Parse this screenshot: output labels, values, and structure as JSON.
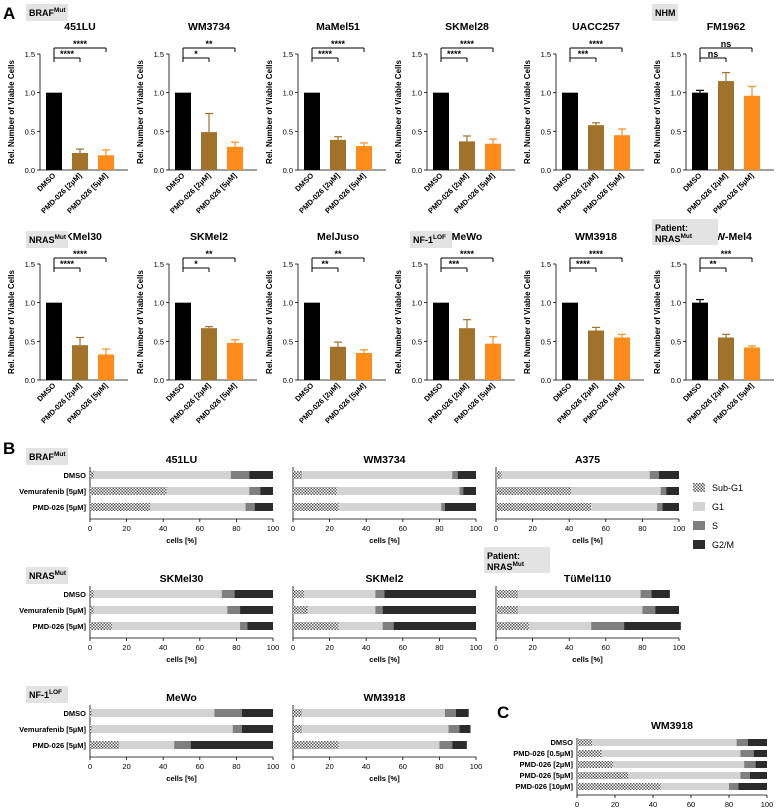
{
  "figure": {
    "panel_labels": [
      "A",
      "B",
      "C"
    ],
    "colors": {
      "dmso": "#000000",
      "pmd2": "#a0722a",
      "pmd5": "#ff8c1a",
      "subg1": "#bdbdbd",
      "g1": "#d3d3d3",
      "s": "#7f7f7f",
      "g2m": "#2b2b2b",
      "tag_bg": "#e3e3e3"
    },
    "panel_a": {
      "ylabel": "Rel. Number of Viable Cells",
      "categories": [
        "DMSO",
        "PMD-026 [2µM]",
        "PMD-026 [5µM]"
      ],
      "groups": [
        {
          "tag": "BRAF",
          "tag_sup": "Mut",
          "row": 0,
          "start": 0
        },
        {
          "tag": "NHM",
          "tag_sup": "",
          "row": 0,
          "start": 5
        },
        {
          "tag": "NRAS",
          "tag_sup": "Mut",
          "row": 1,
          "start": 0
        },
        {
          "tag": "NF-1",
          "tag_sup": "LOF",
          "row": 1,
          "start": 3
        },
        {
          "tag": "Patient:",
          "tag2": "NRAS",
          "tag_sup": "Mut",
          "row": 1,
          "start": 5
        }
      ]
    },
    "panel_b": {
      "xlabel": "cells [%]",
      "legend": [
        "Sub-G1",
        "G1",
        "S",
        "G2/M"
      ]
    },
    "panel_c": {
      "xlabel": "cells [%]"
    }
  },
  "chart_data": [
    {
      "type": "bar",
      "panel": "A",
      "ylabel": "Rel. Number of Viable Cells",
      "categories": [
        "DMSO",
        "PMD-026 [2µM]",
        "PMD-026 [5µM]"
      ],
      "ylim": [
        0,
        1.5
      ],
      "yticks": [
        "0.0",
        "0.5",
        "1.0",
        "1.5"
      ],
      "charts": [
        {
          "title": "451LU",
          "values": [
            1.0,
            0.22,
            0.19
          ],
          "errors": [
            0,
            0.05,
            0.07
          ],
          "sig": [
            "****",
            "****"
          ]
        },
        {
          "title": "WM3734",
          "values": [
            1.0,
            0.49,
            0.3
          ],
          "errors": [
            0,
            0.24,
            0.06
          ],
          "sig": [
            "*",
            "**"
          ]
        },
        {
          "title": "MaMel51",
          "values": [
            1.0,
            0.39,
            0.31
          ],
          "errors": [
            0,
            0.04,
            0.04
          ],
          "sig": [
            "****",
            "****"
          ]
        },
        {
          "title": "SKMel28",
          "values": [
            1.0,
            0.37,
            0.34
          ],
          "errors": [
            0,
            0.07,
            0.06
          ],
          "sig": [
            "****",
            "****"
          ]
        },
        {
          "title": "UACC257",
          "values": [
            1.0,
            0.58,
            0.45
          ],
          "errors": [
            0,
            0.03,
            0.08
          ],
          "sig": [
            "***",
            "****"
          ]
        },
        {
          "title": "FM1962",
          "values": [
            1.0,
            1.15,
            0.96
          ],
          "errors": [
            0.03,
            0.11,
            0.12
          ],
          "sig": [
            "ns",
            "ns"
          ]
        },
        {
          "title": "SKMel30",
          "values": [
            1.0,
            0.45,
            0.33
          ],
          "errors": [
            0,
            0.1,
            0.07
          ],
          "sig": [
            "****",
            "****"
          ]
        },
        {
          "title": "SKMel2",
          "values": [
            1.0,
            0.67,
            0.48
          ],
          "errors": [
            0,
            0.02,
            0.04
          ],
          "sig": [
            "*",
            "**"
          ]
        },
        {
          "title": "MelJuso",
          "values": [
            1.0,
            0.43,
            0.35
          ],
          "errors": [
            0,
            0.06,
            0.04
          ],
          "sig": [
            "**",
            "**"
          ]
        },
        {
          "title": "MeWo",
          "values": [
            1.0,
            0.67,
            0.47
          ],
          "errors": [
            0,
            0.11,
            0.09
          ],
          "sig": [
            "***",
            "****"
          ]
        },
        {
          "title": "WM3918",
          "values": [
            1.0,
            0.64,
            0.55
          ],
          "errors": [
            0,
            0.04,
            0.04
          ],
          "sig": [
            "****",
            "****"
          ]
        },
        {
          "title": "UKW-Mel4",
          "values": [
            1.0,
            0.55,
            0.42
          ],
          "errors": [
            0.04,
            0.04,
            0.02
          ],
          "sig": [
            "**",
            "***"
          ]
        }
      ]
    },
    {
      "type": "bar",
      "orientation": "horizontal",
      "stacked": true,
      "panel": "B",
      "xlabel": "cells [%]",
      "xlim": [
        0,
        100
      ],
      "xticks": [
        "0",
        "20",
        "40",
        "60",
        "80",
        "100"
      ],
      "series_names": [
        "Sub-G1",
        "G1",
        "S",
        "G2/M"
      ],
      "groups": [
        {
          "tag": "BRAF",
          "tag_sup": "Mut",
          "tag2": "",
          "categories": [
            "DMSO",
            "Vemurafenib [5µM]",
            "PMD-026 [5µM]"
          ],
          "charts": [
            {
              "title": "451LU",
              "rows": [
                [
                  2,
                  75,
                  10,
                  13
                ],
                [
                  42,
                  45,
                  6,
                  7
                ],
                [
                  33,
                  52,
                  5,
                  10
                ]
              ]
            },
            {
              "title": "WM3734",
              "rows": [
                [
                  5,
                  82,
                  3,
                  10
                ],
                [
                  24,
                  67,
                  2,
                  7
                ],
                [
                  25,
                  56,
                  2,
                  17
                ]
              ]
            },
            {
              "title": "A375",
              "rows": [
                [
                  3,
                  81,
                  5,
                  11
                ],
                [
                  41,
                  49,
                  3,
                  7
                ],
                [
                  52,
                  36,
                  3,
                  9
                ]
              ]
            }
          ]
        },
        {
          "tag": "NRAS",
          "tag_sup": "Mut",
          "tag2": "",
          "categories": [
            "DMSO",
            "Vemurafenib [5µM]",
            "PMD-026 [5µM]"
          ],
          "charts": [
            {
              "title": "SKMel30",
              "rows": [
                [
                  2,
                  70,
                  7,
                  21
                ],
                [
                  2,
                  73,
                  7,
                  18
                ],
                [
                  12,
                  70,
                  4,
                  14
                ]
              ]
            },
            {
              "title": "SKMel2",
              "rows": [
                [
                  6,
                  39,
                  5,
                  50
                ],
                [
                  8,
                  37,
                  4,
                  51
                ],
                [
                  25,
                  24,
                  6,
                  45
                ]
              ]
            },
            {
              "tag": "Patient:",
              "tag2": "NRAS",
              "tag_sup": "Mut",
              "title": "TüMel110",
              "rows": [
                [
                  12,
                  67,
                  6,
                  10
                ],
                [
                  12,
                  68,
                  7,
                  13
                ],
                [
                  18,
                  34,
                  18,
                  31
                ]
              ]
            }
          ]
        },
        {
          "tag": "NF-1",
          "tag_sup": "LOF",
          "tag2": "",
          "categories": [
            "DMSO",
            "Vemurafenib [5µM]",
            "PMD-026 [5µM]"
          ],
          "charts": [
            {
              "title": "MeWo",
              "rows": [
                [
                  1,
                  67,
                  15,
                  17
                ],
                [
                  1,
                  77,
                  5,
                  17
                ],
                [
                  16,
                  30,
                  9,
                  45
                ]
              ]
            },
            {
              "title": "WM3918",
              "rows": [
                [
                  5,
                  78,
                  6,
                  7
                ],
                [
                  5,
                  80,
                  6,
                  6
                ],
                [
                  25,
                  55,
                  7,
                  8
                ]
              ]
            }
          ]
        }
      ]
    },
    {
      "type": "bar",
      "orientation": "horizontal",
      "stacked": true,
      "panel": "C",
      "title": "WM3918",
      "xlabel": "cells [%]",
      "xlim": [
        0,
        100
      ],
      "xticks": [
        "0",
        "20",
        "40",
        "60",
        "80",
        "100"
      ],
      "categories": [
        "DMSO",
        "PMD-026 [0.5µM]",
        "PMD-026 [2µM]",
        "PMD-026 [5µM]",
        "PMD-026 [10µM]"
      ],
      "rows": [
        [
          8,
          76,
          6,
          10
        ],
        [
          13,
          73,
          7,
          7
        ],
        [
          19,
          69,
          6,
          6
        ],
        [
          27,
          59,
          5,
          9
        ],
        [
          44,
          36,
          5,
          15
        ]
      ]
    }
  ]
}
